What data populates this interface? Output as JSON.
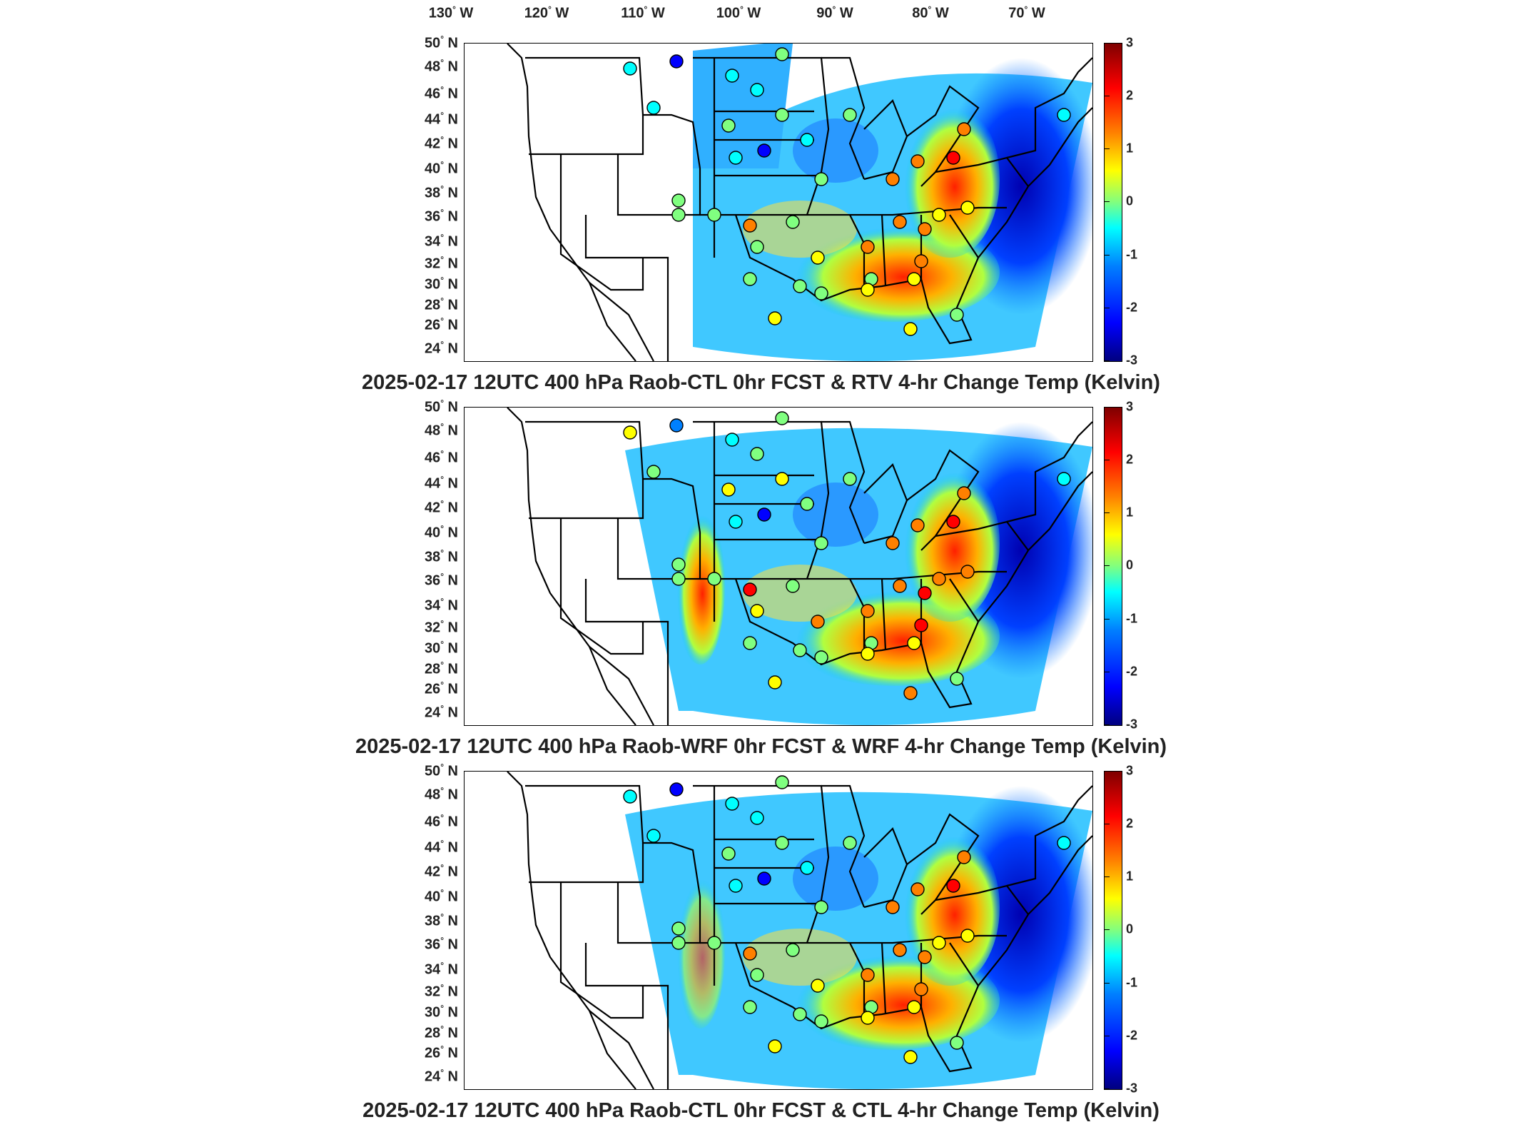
{
  "longitude_labels": [
    "130",
    "120",
    "110",
    "100",
    "90",
    "80",
    "70"
  ],
  "longitude_suffix": "W",
  "latitude_labels": [
    "50",
    "48",
    "46",
    "44",
    "42",
    "40",
    "38",
    "36",
    "34",
    "32",
    "30",
    "28",
    "26",
    "24"
  ],
  "latitude_suffix": "N",
  "degree_symbol": "°",
  "colorbar": {
    "ticks": [
      "3",
      "2",
      "1",
      "0",
      "-1",
      "-2",
      "-3"
    ],
    "min": -3,
    "max": 3,
    "colormap": "jet",
    "colors": [
      "#00007f",
      "#0000ff",
      "#0080ff",
      "#00ffff",
      "#80ff80",
      "#ffff00",
      "#ff8000",
      "#ff0000",
      "#7f0000"
    ]
  },
  "panels": [
    {
      "title": "2025-02-17 12UTC 400 hPa Raob-CTL 0hr FCST & RTV 4-hr Change Temp (Kelvin)"
    },
    {
      "title": "2025-02-17 12UTC 400 hPa Raob-WRF 0hr FCST & WRF 4-hr Change Temp (Kelvin)"
    },
    {
      "title": "2025-02-17 12UTC 400 hPa Raob-CTL 0hr FCST & CTL 4-hr Change Temp (Kelvin)"
    }
  ]
}
